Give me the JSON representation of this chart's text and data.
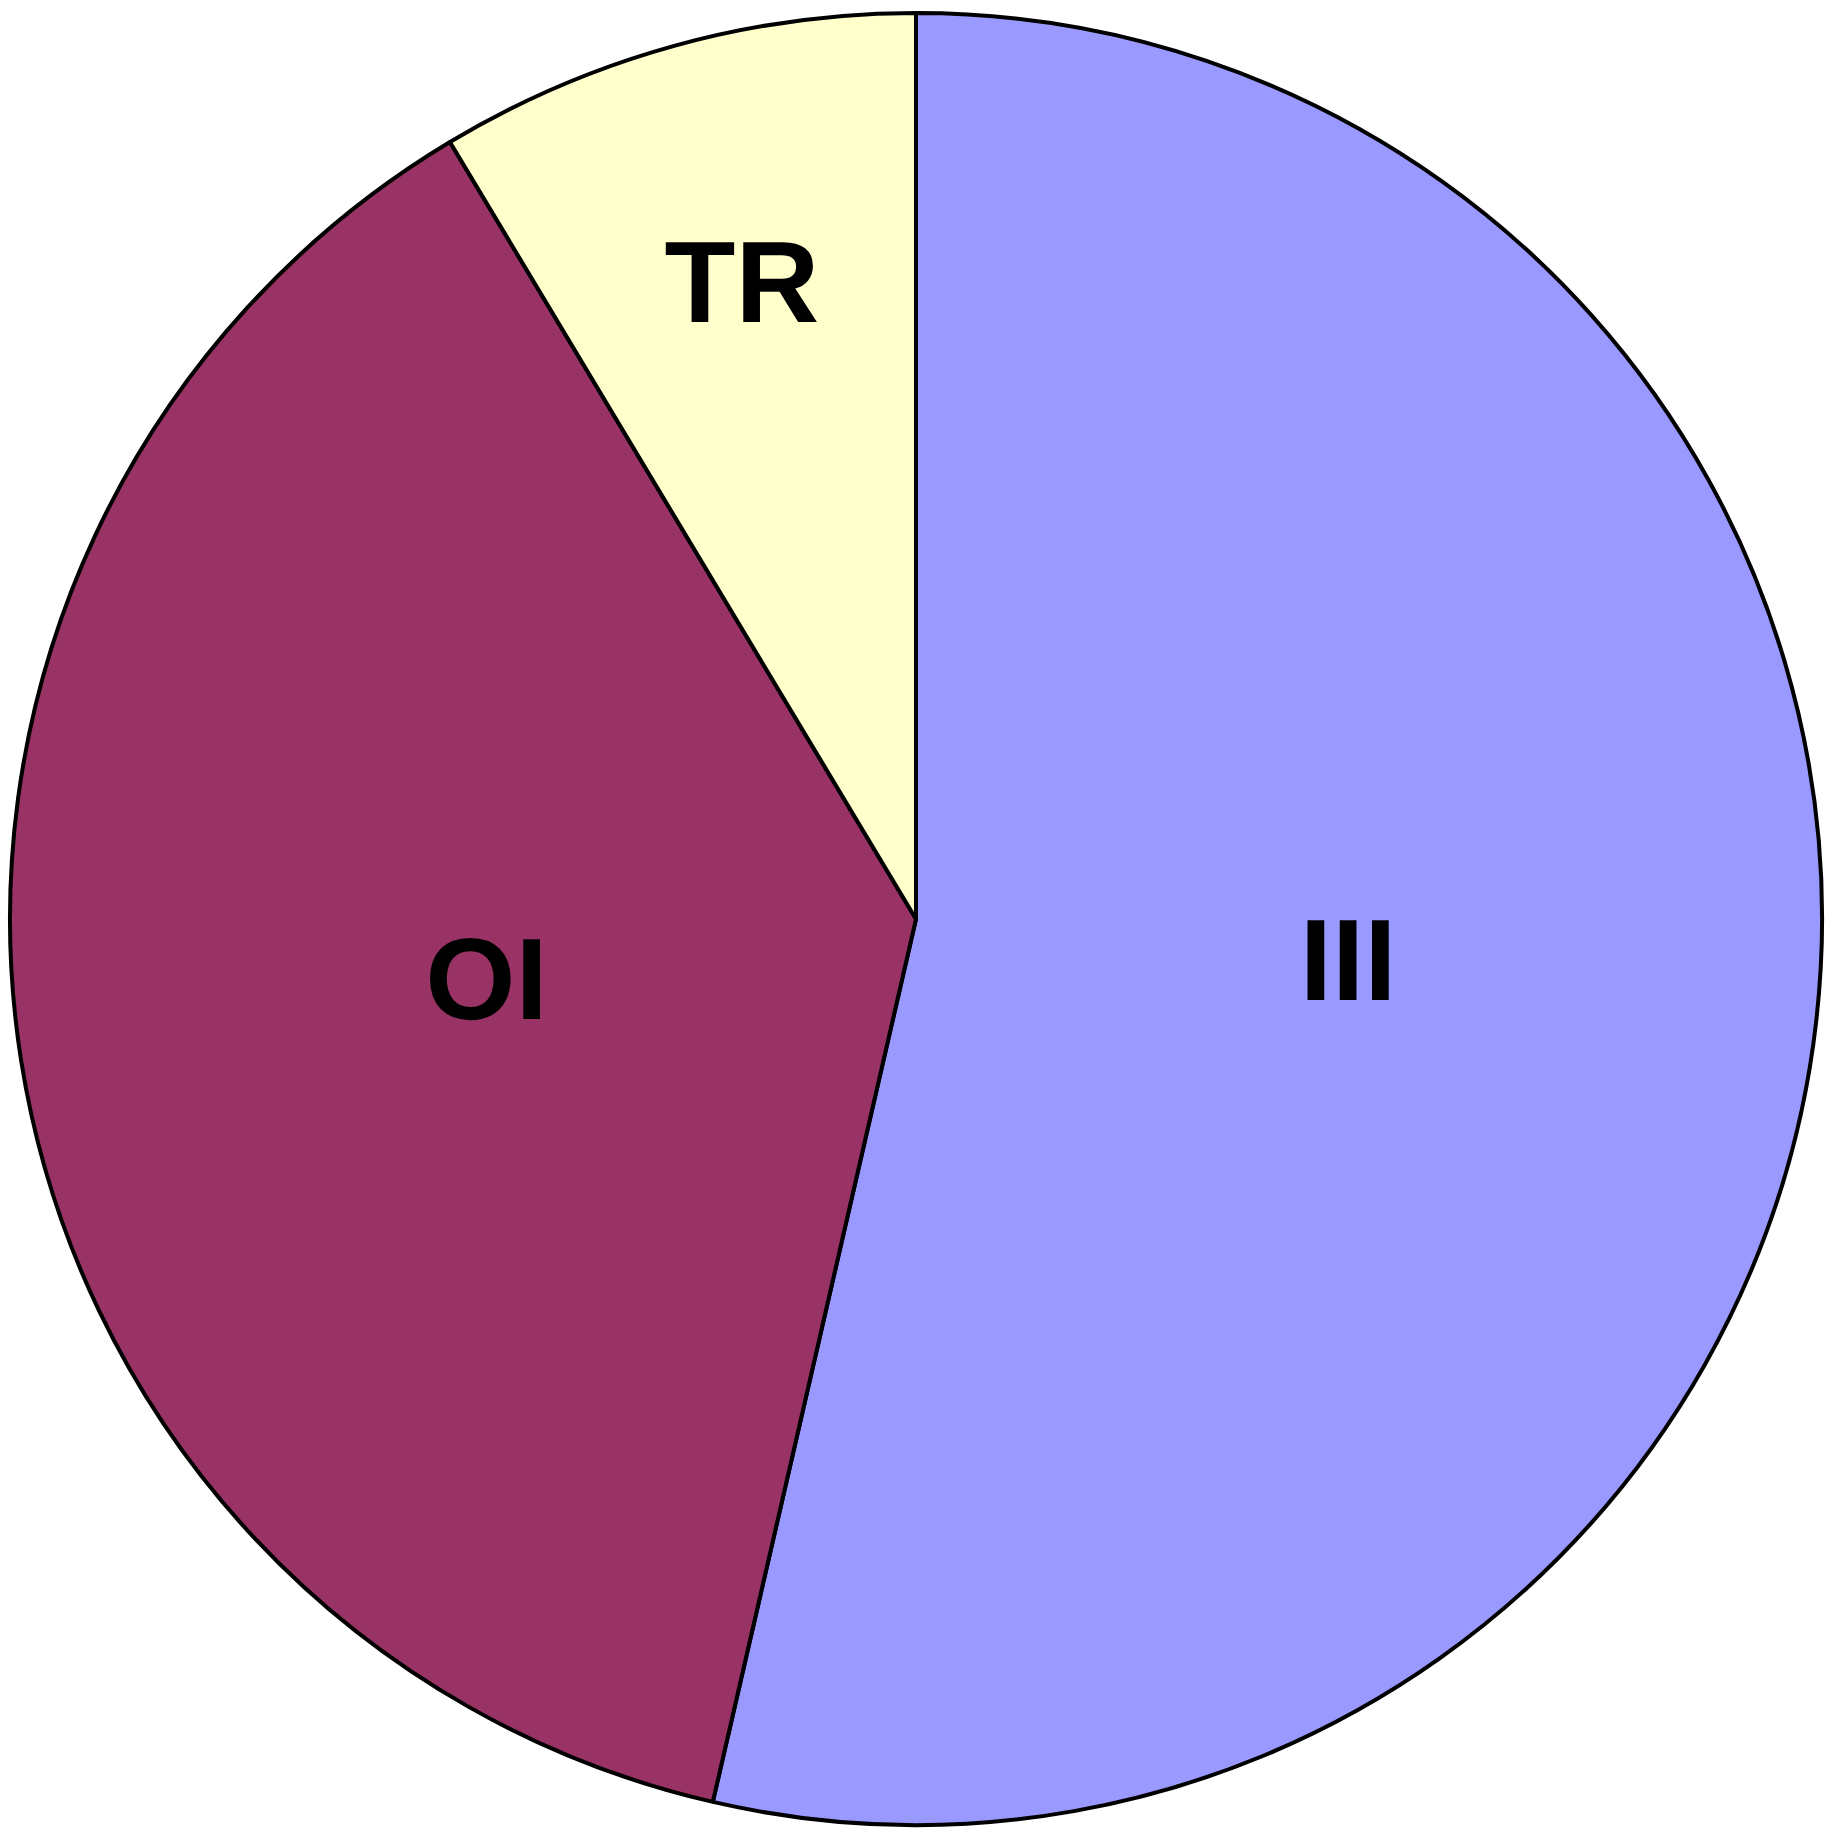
{
  "chart_data": {
    "type": "pie",
    "categories": [
      "III",
      "OI",
      "TR"
    ],
    "values": [
      53.6,
      37.8,
      8.6
    ],
    "colors": [
      "#9999ff",
      "#993366",
      "#ffffcc"
    ],
    "legend": false
  }
}
